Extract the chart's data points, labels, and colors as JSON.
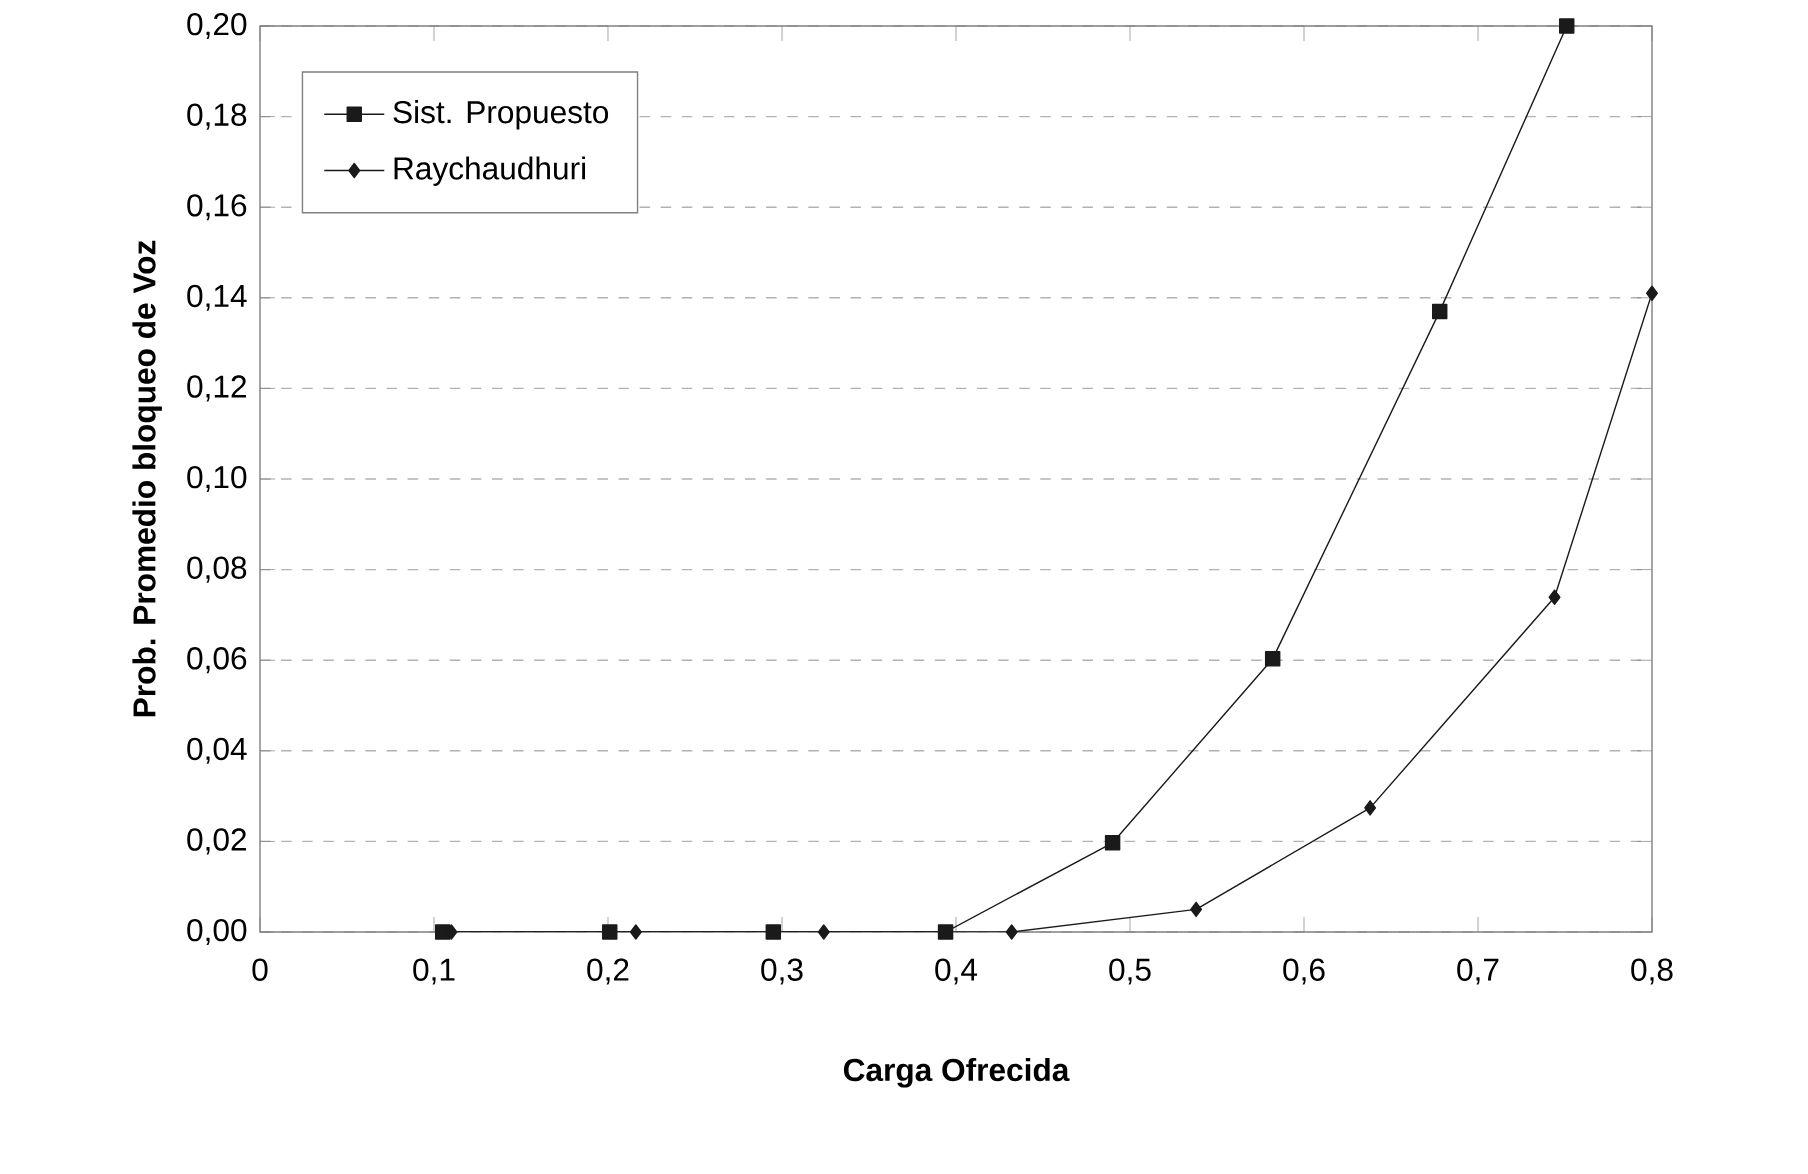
{
  "chart_data": {
    "type": "line",
    "xlabel": "Carga Ofrecida",
    "ylabel": "Prob. Promedio bloqueo de Voz",
    "xlim": [
      0,
      0.8
    ],
    "xticks": [
      {
        "value": 0,
        "label": "0"
      },
      {
        "value": 0.1,
        "label": "0,1"
      },
      {
        "value": 0.2,
        "label": "0,2"
      },
      {
        "value": 0.3,
        "label": "0,3"
      },
      {
        "value": 0.4,
        "label": "0,4"
      },
      {
        "value": 0.5,
        "label": "0,5"
      },
      {
        "value": 0.6,
        "label": "0,6"
      },
      {
        "value": 0.7,
        "label": "0,7"
      },
      {
        "value": 0.8,
        "label": "0,8"
      }
    ],
    "ylim": [
      0,
      0.2
    ],
    "yticks": [
      {
        "value": 0,
        "label": "0,00"
      },
      {
        "value": 0.02,
        "label": "0,02"
      },
      {
        "value": 0.04,
        "label": "0,04"
      },
      {
        "value": 0.06,
        "label": "0,06"
      },
      {
        "value": 0.08,
        "label": "0,08"
      },
      {
        "value": 0.1,
        "label": "0,10"
      },
      {
        "value": 0.12,
        "label": "0,12"
      },
      {
        "value": 0.14,
        "label": "0,14"
      },
      {
        "value": 0.16,
        "label": "0,16"
      },
      {
        "value": 0.18,
        "label": "0,18"
      },
      {
        "value": 0.2,
        "label": "0,20"
      }
    ],
    "grid": "y",
    "legend": "top left",
    "series": [
      {
        "name": "Sist. Propuesto",
        "color": "#1a1a1a",
        "marker": "square",
        "x": [
          0.105,
          0.201,
          0.295,
          0.394,
          0.49,
          0.582,
          0.678,
          0.751
        ],
        "values": [
          0,
          0,
          0,
          0,
          0.0197,
          0.0603,
          0.137,
          0.2
        ]
      },
      {
        "name": "Raychaudhuri",
        "color": "#1a1a1a",
        "marker": "diamond",
        "x": [
          0.11,
          0.216,
          0.324,
          0.432,
          0.538,
          0.638,
          0.744,
          0.8
        ],
        "values": [
          0,
          0,
          0,
          0,
          0.005,
          0.0274,
          0.0739,
          0.141
        ]
      }
    ]
  }
}
